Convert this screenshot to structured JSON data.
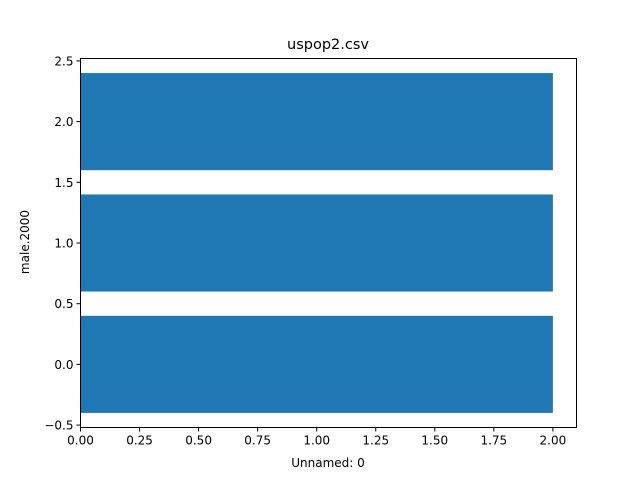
{
  "chart_data": {
    "type": "bar",
    "orientation": "horizontal",
    "title": "uspop2.csv",
    "xlabel": "Unnamed: 0",
    "ylabel": "male.2000",
    "bar_color": "#1f77b4",
    "bars": [
      {
        "y": 0.0,
        "width": 2.0
      },
      {
        "y": 1.0,
        "width": 2.0
      },
      {
        "y": 2.0,
        "width": 2.0
      }
    ],
    "bar_thickness": 0.8,
    "xlim": [
      0,
      2.1
    ],
    "ylim": [
      -0.52,
      2.52
    ],
    "xticks": [
      0.0,
      0.25,
      0.5,
      0.75,
      1.0,
      1.25,
      1.5,
      1.75,
      2.0
    ],
    "xtick_labels": [
      "0.00",
      "0.25",
      "0.50",
      "0.75",
      "1.00",
      "1.25",
      "1.50",
      "1.75",
      "2.00"
    ],
    "yticks": [
      -0.5,
      0.0,
      0.5,
      1.0,
      1.5,
      2.0,
      2.5
    ],
    "ytick_labels": [
      "−0.5",
      "0.0",
      "0.5",
      "1.0",
      "1.5",
      "2.0",
      "2.5"
    ],
    "grid": false,
    "legend": false
  }
}
